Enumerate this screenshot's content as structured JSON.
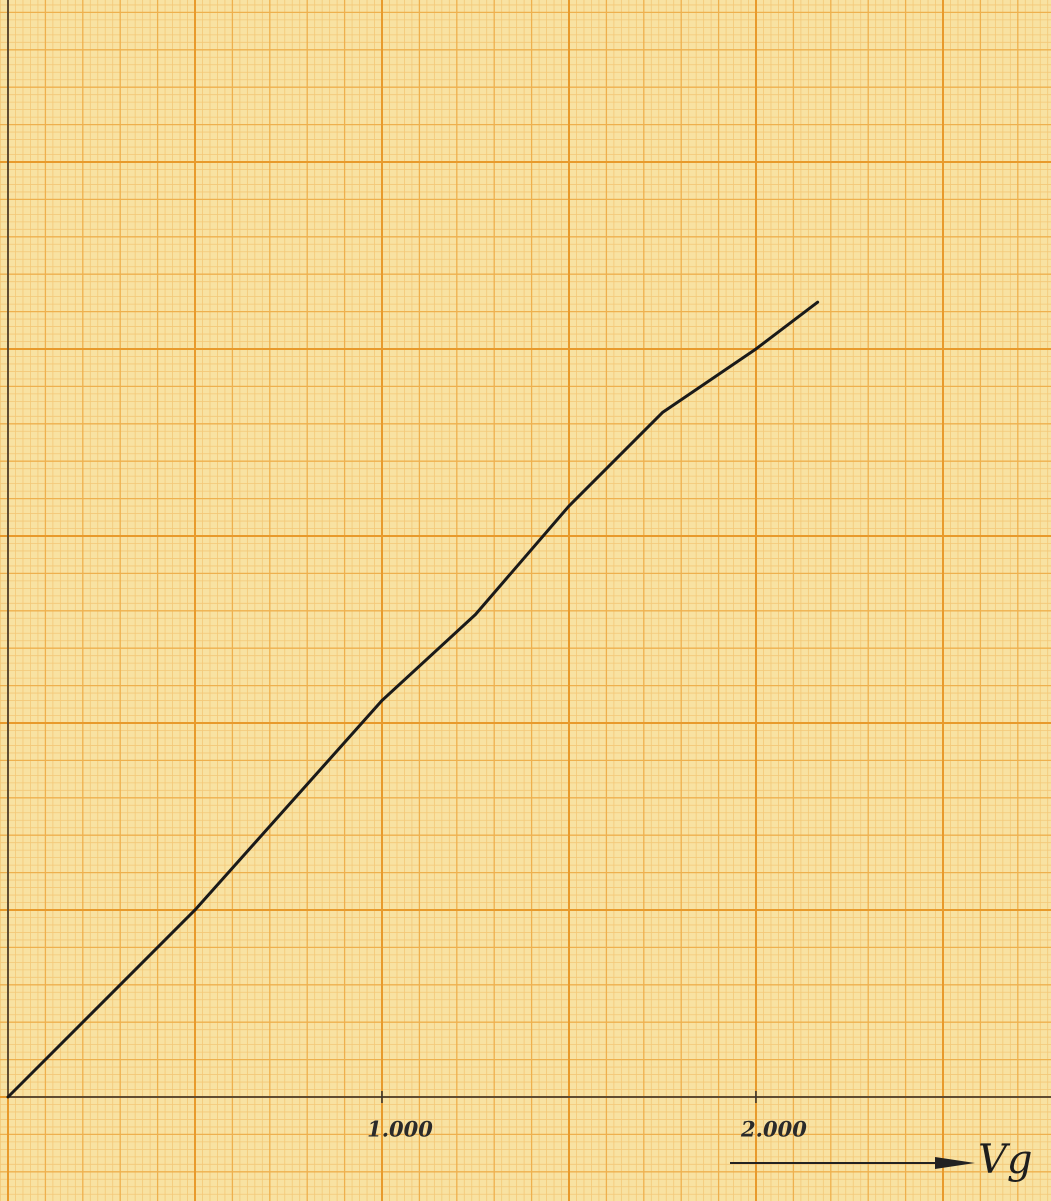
{
  "chart_data": {
    "type": "line",
    "x_label": "Vg",
    "x": [
      0,
      500,
      1000,
      1250,
      1500,
      1750,
      2000,
      2165
    ],
    "series": [
      {
        "color": "#1a1a1a",
        "values": [
          0,
          500,
          1060,
          1290,
          1580,
          1830,
          2000,
          2125
        ]
      }
    ],
    "xlim": [
      0,
      2789
    ],
    "ylim": [
      0,
      2933
    ],
    "xticks": [
      {
        "value": 1000,
        "label": "1.000"
      },
      {
        "value": 2000,
        "label": "2.000"
      }
    ]
  }
}
